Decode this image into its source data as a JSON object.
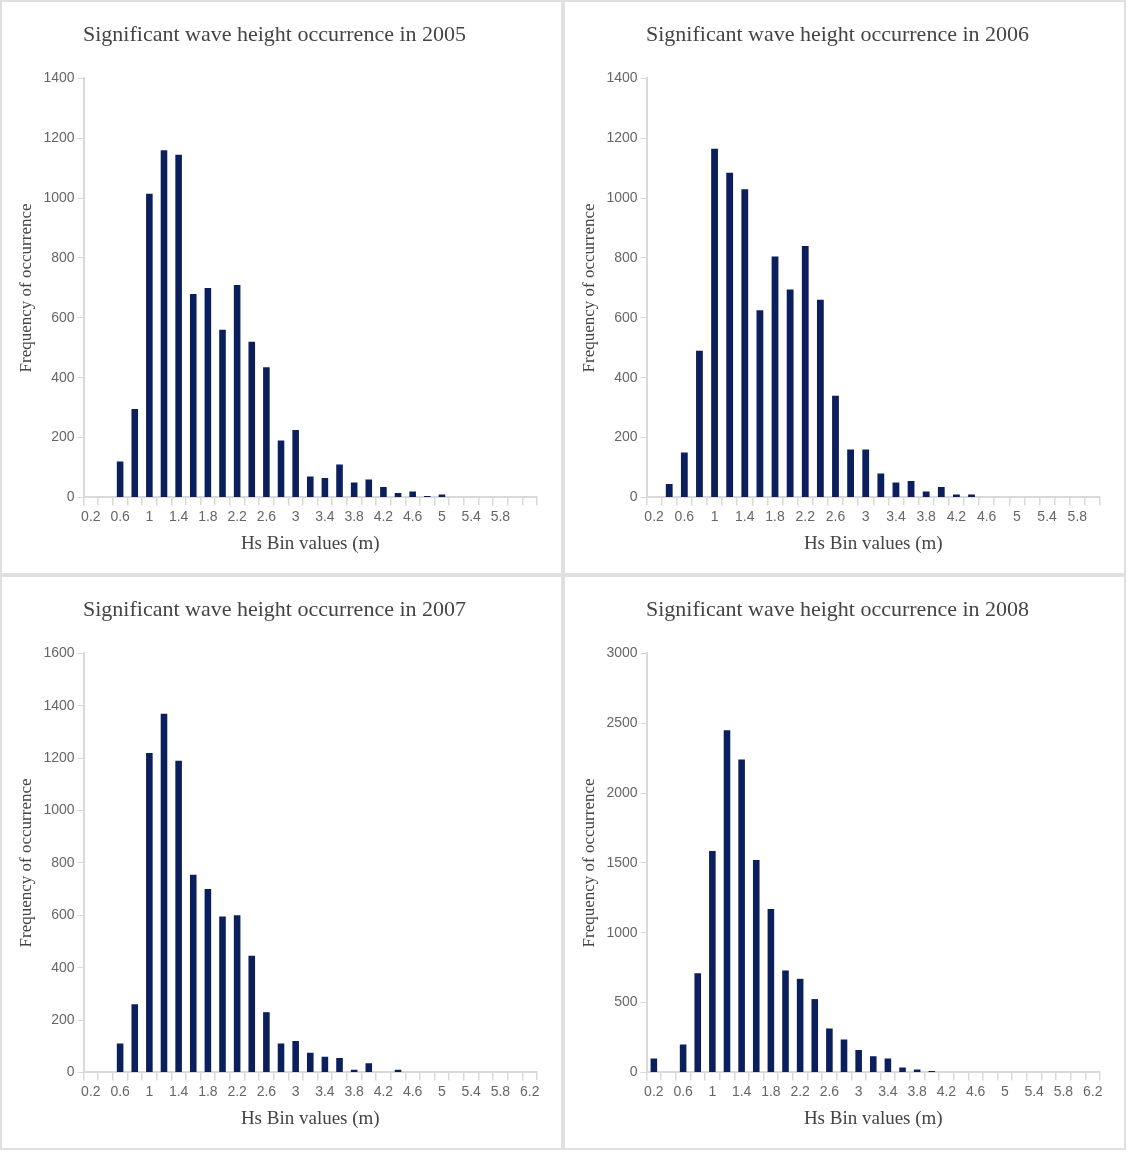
{
  "chart_data": [
    {
      "type": "bar",
      "title": "Significant wave height occurrence in 2005",
      "xlabel": "Hs Bin values (m)",
      "ylabel": "Frequency of occurrence",
      "color": "#0b1f5c",
      "categories": [
        "0.2",
        null,
        "0.6",
        null,
        "1",
        null,
        "1.4",
        null,
        "1.8",
        null,
        "2.2",
        null,
        "2.6",
        null,
        "3",
        null,
        "3.4",
        null,
        "3.8",
        null,
        "4.2",
        null,
        "4.6",
        null,
        "5",
        null,
        "5.4",
        null,
        "5.8",
        null,
        null
      ],
      "values": [
        0,
        0,
        120,
        295,
        1015,
        1160,
        1145,
        680,
        700,
        560,
        710,
        520,
        435,
        190,
        225,
        70,
        65,
        110,
        50,
        60,
        35,
        15,
        20,
        5,
        10,
        0,
        0,
        0,
        0,
        0,
        0
      ],
      "ylim": [
        0,
        1400
      ],
      "yticks": [
        0,
        200,
        400,
        600,
        800,
        1000,
        1200,
        1400
      ]
    },
    {
      "type": "bar",
      "title": "Significant wave height occurrence in 2006",
      "xlabel": "Hs Bin values (m)",
      "ylabel": "Frequency of occurrence",
      "color": "#0b1f5c",
      "categories": [
        "0.2",
        null,
        "0.6",
        null,
        "1",
        null,
        "1.4",
        null,
        "1.8",
        null,
        "2.2",
        null,
        "2.6",
        null,
        "3",
        null,
        "3.4",
        null,
        "3.8",
        null,
        "4.2",
        null,
        "4.6",
        null,
        "5",
        null,
        "5.4",
        null,
        "5.8",
        null
      ],
      "values": [
        0,
        45,
        150,
        490,
        1165,
        1085,
        1030,
        625,
        805,
        695,
        840,
        660,
        340,
        160,
        160,
        80,
        50,
        55,
        20,
        35,
        10,
        10,
        0,
        0,
        0,
        0,
        0,
        0,
        0,
        0
      ],
      "ylim": [
        0,
        1400
      ],
      "yticks": [
        0,
        200,
        400,
        600,
        800,
        1000,
        1200,
        1400
      ]
    },
    {
      "type": "bar",
      "title": "Significant wave height occurrence in 2007",
      "xlabel": "Hs Bin values (m)",
      "ylabel": "Frequency of occurrence",
      "color": "#0b1f5c",
      "categories": [
        "0.2",
        null,
        "0.6",
        null,
        "1",
        null,
        "1.4",
        null,
        "1.8",
        null,
        "2.2",
        null,
        "2.6",
        null,
        "3",
        null,
        "3.4",
        null,
        "3.8",
        null,
        "4.2",
        null,
        "4.6",
        null,
        "5",
        null,
        "5.4",
        null,
        "5.8",
        null,
        "6.2"
      ],
      "values": [
        0,
        0,
        110,
        260,
        1220,
        1370,
        1190,
        755,
        700,
        595,
        600,
        445,
        230,
        110,
        120,
        75,
        60,
        55,
        10,
        35,
        0,
        10,
        0,
        0,
        0,
        0,
        0,
        0,
        0,
        0,
        0
      ],
      "ylim": [
        0,
        1600
      ],
      "yticks": [
        0,
        200,
        400,
        600,
        800,
        1000,
        1200,
        1400,
        1600
      ]
    },
    {
      "type": "bar",
      "title": "Significant wave height occurrence in 2008",
      "xlabel": "Hs Bin values (m)",
      "ylabel": "Frequency of occurrence",
      "color": "#0b1f5c",
      "categories": [
        "0.2",
        null,
        "0.6",
        null,
        "1",
        null,
        "1.4",
        null,
        "1.8",
        null,
        "2.2",
        null,
        "2.6",
        null,
        "3",
        null,
        "3.4",
        null,
        "3.8",
        null,
        "4.2",
        null,
        "4.6",
        null,
        "5",
        null,
        "5.4",
        null,
        "5.8",
        null,
        "6.2"
      ],
      "values": [
        100,
        0,
        200,
        710,
        1585,
        2450,
        2240,
        1520,
        1170,
        730,
        670,
        525,
        315,
        235,
        160,
        115,
        100,
        35,
        20,
        10,
        0,
        0,
        0,
        0,
        0,
        0,
        0,
        0,
        0,
        0,
        0
      ],
      "ylim": [
        0,
        3000
      ],
      "yticks": [
        0,
        500,
        1000,
        1500,
        2000,
        2500,
        3000
      ]
    }
  ]
}
